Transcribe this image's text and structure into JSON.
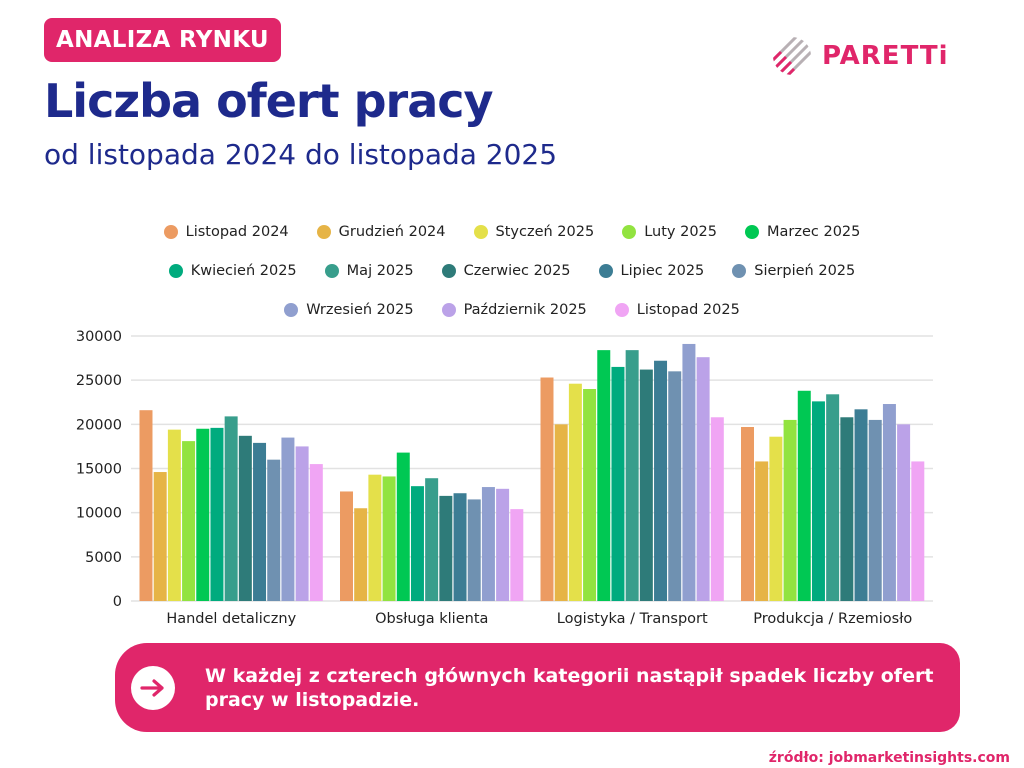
{
  "header": {
    "badge": "ANALIZA RYNKU",
    "title": "Liczba ofert pracy",
    "subtitle": "od listopada 2024 do listopada 2025"
  },
  "logo": {
    "text": "PARETTi",
    "color": "#e0266a"
  },
  "callout": {
    "text": "W każdej z czterech głównych kategorii nastąpił spadek liczby ofert pracy w listopadzie.",
    "icon": "arrow-right-icon"
  },
  "source": "źródło: jobmarketinsights.com",
  "chart_data": {
    "type": "bar",
    "categories": [
      "Handel detaliczny",
      "Obsługa klienta",
      "Logistyka / Transport",
      "Produkcja / Rzemiosło"
    ],
    "ylim": [
      0,
      30000
    ],
    "yticks": [
      0,
      5000,
      10000,
      15000,
      20000,
      25000,
      30000
    ],
    "grid": true,
    "legend_placement": "top",
    "series": [
      {
        "name": "Listopad 2024",
        "color": "#ec9b62",
        "values": [
          21600,
          12400,
          25300,
          19700
        ]
      },
      {
        "name": "Grudzień 2024",
        "color": "#e6b446",
        "values": [
          14600,
          10500,
          20000,
          15800
        ]
      },
      {
        "name": "Styczeń 2025",
        "color": "#e4e04a",
        "values": [
          19400,
          14300,
          24600,
          18600
        ]
      },
      {
        "name": "Luty 2025",
        "color": "#92e340",
        "values": [
          18100,
          14100,
          24000,
          20500
        ]
      },
      {
        "name": "Marzec 2025",
        "color": "#00c853",
        "values": [
          19500,
          16800,
          28400,
          23800
        ]
      },
      {
        "name": "Kwiecień 2025",
        "color": "#00ab7e",
        "values": [
          19600,
          13000,
          26500,
          22600
        ]
      },
      {
        "name": "Maj 2025",
        "color": "#389e8c",
        "values": [
          20900,
          13900,
          28400,
          23400
        ]
      },
      {
        "name": "Czerwiec 2025",
        "color": "#2e7b79",
        "values": [
          18700,
          11900,
          26200,
          20800
        ]
      },
      {
        "name": "Lipiec 2025",
        "color": "#3c7d94",
        "values": [
          17900,
          12200,
          27200,
          21700
        ]
      },
      {
        "name": "Sierpień 2025",
        "color": "#6f91b1",
        "values": [
          16000,
          11500,
          26000,
          20500
        ]
      },
      {
        "name": "Wrzesień 2025",
        "color": "#909fcf",
        "values": [
          18500,
          12900,
          29100,
          22300
        ]
      },
      {
        "name": "Październik 2025",
        "color": "#bba2e8",
        "values": [
          17500,
          12700,
          27600,
          20000
        ]
      },
      {
        "name": "Listopad 2025",
        "color": "#f0a5f4",
        "values": [
          15500,
          10400,
          20800,
          15800
        ]
      }
    ]
  }
}
